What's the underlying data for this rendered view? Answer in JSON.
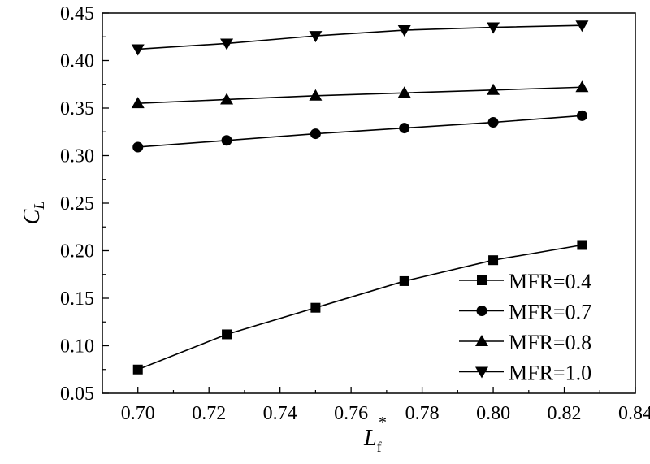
{
  "chart_data": {
    "type": "line",
    "title": "",
    "xlabel": "L",
    "xlabel_sub": "f",
    "xlabel_sup": "*",
    "ylabel": "C",
    "ylabel_sub": "L",
    "xlim": [
      0.69,
      0.84
    ],
    "ylim": [
      0.05,
      0.45
    ],
    "xticks": [
      "0.70",
      "0.72",
      "0.74",
      "0.76",
      "0.78",
      "0.80",
      "0.82",
      "0.84"
    ],
    "yticks": [
      "0.05",
      "0.10",
      "0.15",
      "0.20",
      "0.25",
      "0.30",
      "0.35",
      "0.40",
      "0.45"
    ],
    "grid": false,
    "legend_position": "bottom-right",
    "x": [
      0.7,
      0.725,
      0.75,
      0.775,
      0.8,
      0.825
    ],
    "series": [
      {
        "name": "MFR=0.4",
        "marker": "square",
        "values": [
          0.075,
          0.112,
          0.14,
          0.168,
          0.19,
          0.206
        ]
      },
      {
        "name": "MFR=0.7",
        "marker": "circle",
        "values": [
          0.309,
          0.316,
          0.323,
          0.329,
          0.335,
          0.342
        ]
      },
      {
        "name": "MFR=0.8",
        "marker": "triangle-up",
        "values": [
          0.355,
          0.359,
          0.363,
          0.366,
          0.369,
          0.372
        ]
      },
      {
        "name": "MFR=1.0",
        "marker": "triangle-down",
        "values": [
          0.412,
          0.418,
          0.426,
          0.432,
          0.435,
          0.437
        ]
      }
    ],
    "color": "#000000"
  }
}
